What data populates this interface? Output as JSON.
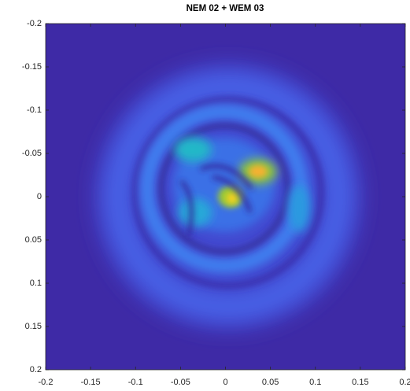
{
  "chart_data": {
    "type": "heatmap",
    "title": "NEM 02 + WEM 03",
    "xlim": [
      -0.2,
      0.2
    ],
    "xticks": [
      -0.2,
      -0.15,
      -0.1,
      -0.05,
      0,
      0.05,
      0.1,
      0.15,
      0.2
    ],
    "ylim": [
      -0.2,
      0.2
    ],
    "yticks": [
      -0.2,
      -0.15,
      -0.1,
      -0.05,
      0,
      0.05,
      0.1,
      0.15,
      0.2
    ],
    "ydir": "reverse",
    "background": "#3e2aa6"
  }
}
